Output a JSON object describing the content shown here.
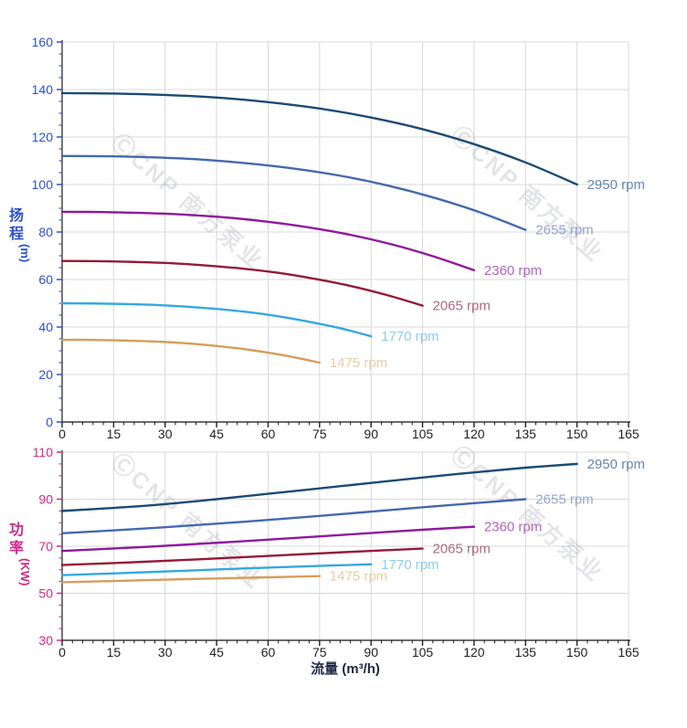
{
  "page": {
    "background": "#ffffff"
  },
  "x_axis": {
    "title": "流量 (m³/h)",
    "title_color": "#1a2742",
    "tick_color": "#1f1f1f",
    "range": [
      0,
      165
    ],
    "major_step": 15,
    "minor_step": 3,
    "tick_labels": [
      "0",
      "15",
      "30",
      "45",
      "60",
      "75",
      "90",
      "105",
      "120",
      "135",
      "150",
      "165"
    ]
  },
  "watermark": {
    "text": "ⒸCNP 南方泵业",
    "color": "#7d828f",
    "opacity": 0.2
  },
  "chart_data": [
    {
      "type": "line",
      "name": "head-curve-chart",
      "title": "",
      "xlabel": "",
      "ylabel": "扬程 (m)",
      "ylabel_stack": [
        "扬",
        "程"
      ],
      "ylabel_unit": "(m)",
      "axis_color": "#2d4fd2",
      "grid": true,
      "y_range": [
        0,
        160
      ],
      "y_major": 20,
      "y_minor": 5,
      "y_tick_labels": [
        "0",
        "20",
        "40",
        "60",
        "80",
        "100",
        "120",
        "140",
        "160"
      ],
      "show_x_title": false,
      "legend_position": "at-curve-ends",
      "series": [
        {
          "name": "2950 rpm",
          "color": "#1c4a73",
          "label_color": "#6886ac",
          "points": [
            [
              0,
              138.5
            ],
            [
              15,
              138.3
            ],
            [
              30,
              137.7
            ],
            [
              45,
              136.6
            ],
            [
              60,
              134.7
            ],
            [
              75,
              132.0
            ],
            [
              90,
              128.2
            ],
            [
              105,
              123.3
            ],
            [
              120,
              117.0
            ],
            [
              135,
              109.3
            ],
            [
              150,
              100.0
            ]
          ]
        },
        {
          "name": "2655 rpm",
          "color": "#4568ae",
          "label_color": "#95a5d5",
          "points": [
            [
              0,
              112.0
            ],
            [
              13.5,
              111.9
            ],
            [
              27,
              111.4
            ],
            [
              40.5,
              110.5
            ],
            [
              54,
              108.9
            ],
            [
              67.5,
              106.7
            ],
            [
              81,
              103.7
            ],
            [
              94.5,
              99.7
            ],
            [
              108,
              94.6
            ],
            [
              121.5,
              88.4
            ],
            [
              135,
              80.9
            ]
          ]
        },
        {
          "name": "2360 rpm",
          "color": "#8f189c",
          "label_color": "#b364c0",
          "points": [
            [
              0,
              88.5
            ],
            [
              12,
              88.4
            ],
            [
              24,
              88.0
            ],
            [
              36,
              87.3
            ],
            [
              48,
              86.1
            ],
            [
              60,
              84.3
            ],
            [
              72,
              81.9
            ],
            [
              84,
              78.8
            ],
            [
              96,
              74.8
            ],
            [
              108,
              69.8
            ],
            [
              120,
              63.9
            ]
          ]
        },
        {
          "name": "2065 rpm",
          "color": "#941a38",
          "label_color": "#ad6a82",
          "points": [
            [
              0,
              67.8
            ],
            [
              10.5,
              67.7
            ],
            [
              21,
              67.4
            ],
            [
              31.5,
              66.9
            ],
            [
              42,
              65.9
            ],
            [
              52.5,
              64.6
            ],
            [
              63,
              62.8
            ],
            [
              73.5,
              60.3
            ],
            [
              84,
              57.3
            ],
            [
              94.5,
              53.5
            ],
            [
              105,
              49.0
            ]
          ]
        },
        {
          "name": "1770 rpm",
          "color": "#35a7e0",
          "label_color": "#8ecbee",
          "points": [
            [
              0,
              50.0
            ],
            [
              9,
              49.9
            ],
            [
              18,
              49.7
            ],
            [
              27,
              49.3
            ],
            [
              36,
              48.6
            ],
            [
              45,
              47.6
            ],
            [
              54,
              46.3
            ],
            [
              63,
              44.5
            ],
            [
              72,
              42.2
            ],
            [
              81,
              39.5
            ],
            [
              90,
              36.1
            ]
          ]
        },
        {
          "name": "1475 rpm",
          "color": "#d39e5c",
          "label_color": "#e7cda6",
          "points": [
            [
              0,
              34.6
            ],
            [
              7.5,
              34.6
            ],
            [
              15,
              34.4
            ],
            [
              22.5,
              34.1
            ],
            [
              30,
              33.7
            ],
            [
              37.5,
              33.0
            ],
            [
              45,
              32.0
            ],
            [
              52.5,
              30.8
            ],
            [
              60,
              29.2
            ],
            [
              67.5,
              27.3
            ],
            [
              75,
              25.0
            ]
          ]
        }
      ]
    },
    {
      "type": "line",
      "name": "power-curve-chart",
      "title": "",
      "xlabel": "流量 (m³/h)",
      "ylabel": "功率 (KW)",
      "ylabel_stack": [
        "功",
        "率"
      ],
      "ylabel_unit": "(KW)",
      "axis_color": "#d22a88",
      "grid": true,
      "y_range": [
        30,
        110
      ],
      "y_major": 20,
      "y_minor": 5,
      "y_tick_labels": [
        "30",
        "50",
        "70",
        "90",
        "110"
      ],
      "show_x_title": true,
      "legend_position": "at-curve-ends",
      "series": [
        {
          "name": "2950 rpm",
          "color": "#1c4a73",
          "label_color": "#6886ac",
          "points": [
            [
              0,
              85.0
            ],
            [
              15,
              86.3
            ],
            [
              30,
              87.9
            ],
            [
              45,
              90.0
            ],
            [
              60,
              92.3
            ],
            [
              75,
              94.6
            ],
            [
              90,
              96.9
            ],
            [
              105,
              99.2
            ],
            [
              120,
              101.4
            ],
            [
              135,
              103.4
            ],
            [
              150,
              105.0
            ]
          ]
        },
        {
          "name": "2655 rpm",
          "color": "#4568ae",
          "label_color": "#95a5d5",
          "points": [
            [
              0,
              75.5
            ],
            [
              27,
              77.8
            ],
            [
              54,
              80.5
            ],
            [
              81,
              83.6
            ],
            [
              108,
              86.9
            ],
            [
              135,
              90.0
            ]
          ]
        },
        {
          "name": "2360 rpm",
          "color": "#8f189c",
          "label_color": "#b364c0",
          "points": [
            [
              0,
              68.0
            ],
            [
              24,
              69.7
            ],
            [
              48,
              71.7
            ],
            [
              72,
              73.9
            ],
            [
              96,
              76.2
            ],
            [
              120,
              78.3
            ]
          ]
        },
        {
          "name": "2065 rpm",
          "color": "#941a38",
          "label_color": "#ad6a82",
          "points": [
            [
              0,
              62.0
            ],
            [
              21,
              63.2
            ],
            [
              42,
              64.6
            ],
            [
              63,
              66.1
            ],
            [
              84,
              67.6
            ],
            [
              105,
              69.0
            ]
          ]
        },
        {
          "name": "1770 rpm",
          "color": "#35a7e0",
          "label_color": "#8ecbee",
          "points": [
            [
              0,
              57.7
            ],
            [
              18,
              58.6
            ],
            [
              36,
              59.6
            ],
            [
              54,
              60.6
            ],
            [
              72,
              61.5
            ],
            [
              90,
              62.3
            ]
          ]
        },
        {
          "name": "1475 rpm",
          "color": "#d39e5c",
          "label_color": "#e7cda6",
          "points": [
            [
              0,
              54.7
            ],
            [
              15,
              55.2
            ],
            [
              30,
              55.8
            ],
            [
              45,
              56.3
            ],
            [
              60,
              56.8
            ],
            [
              75,
              57.3
            ]
          ]
        }
      ]
    }
  ]
}
